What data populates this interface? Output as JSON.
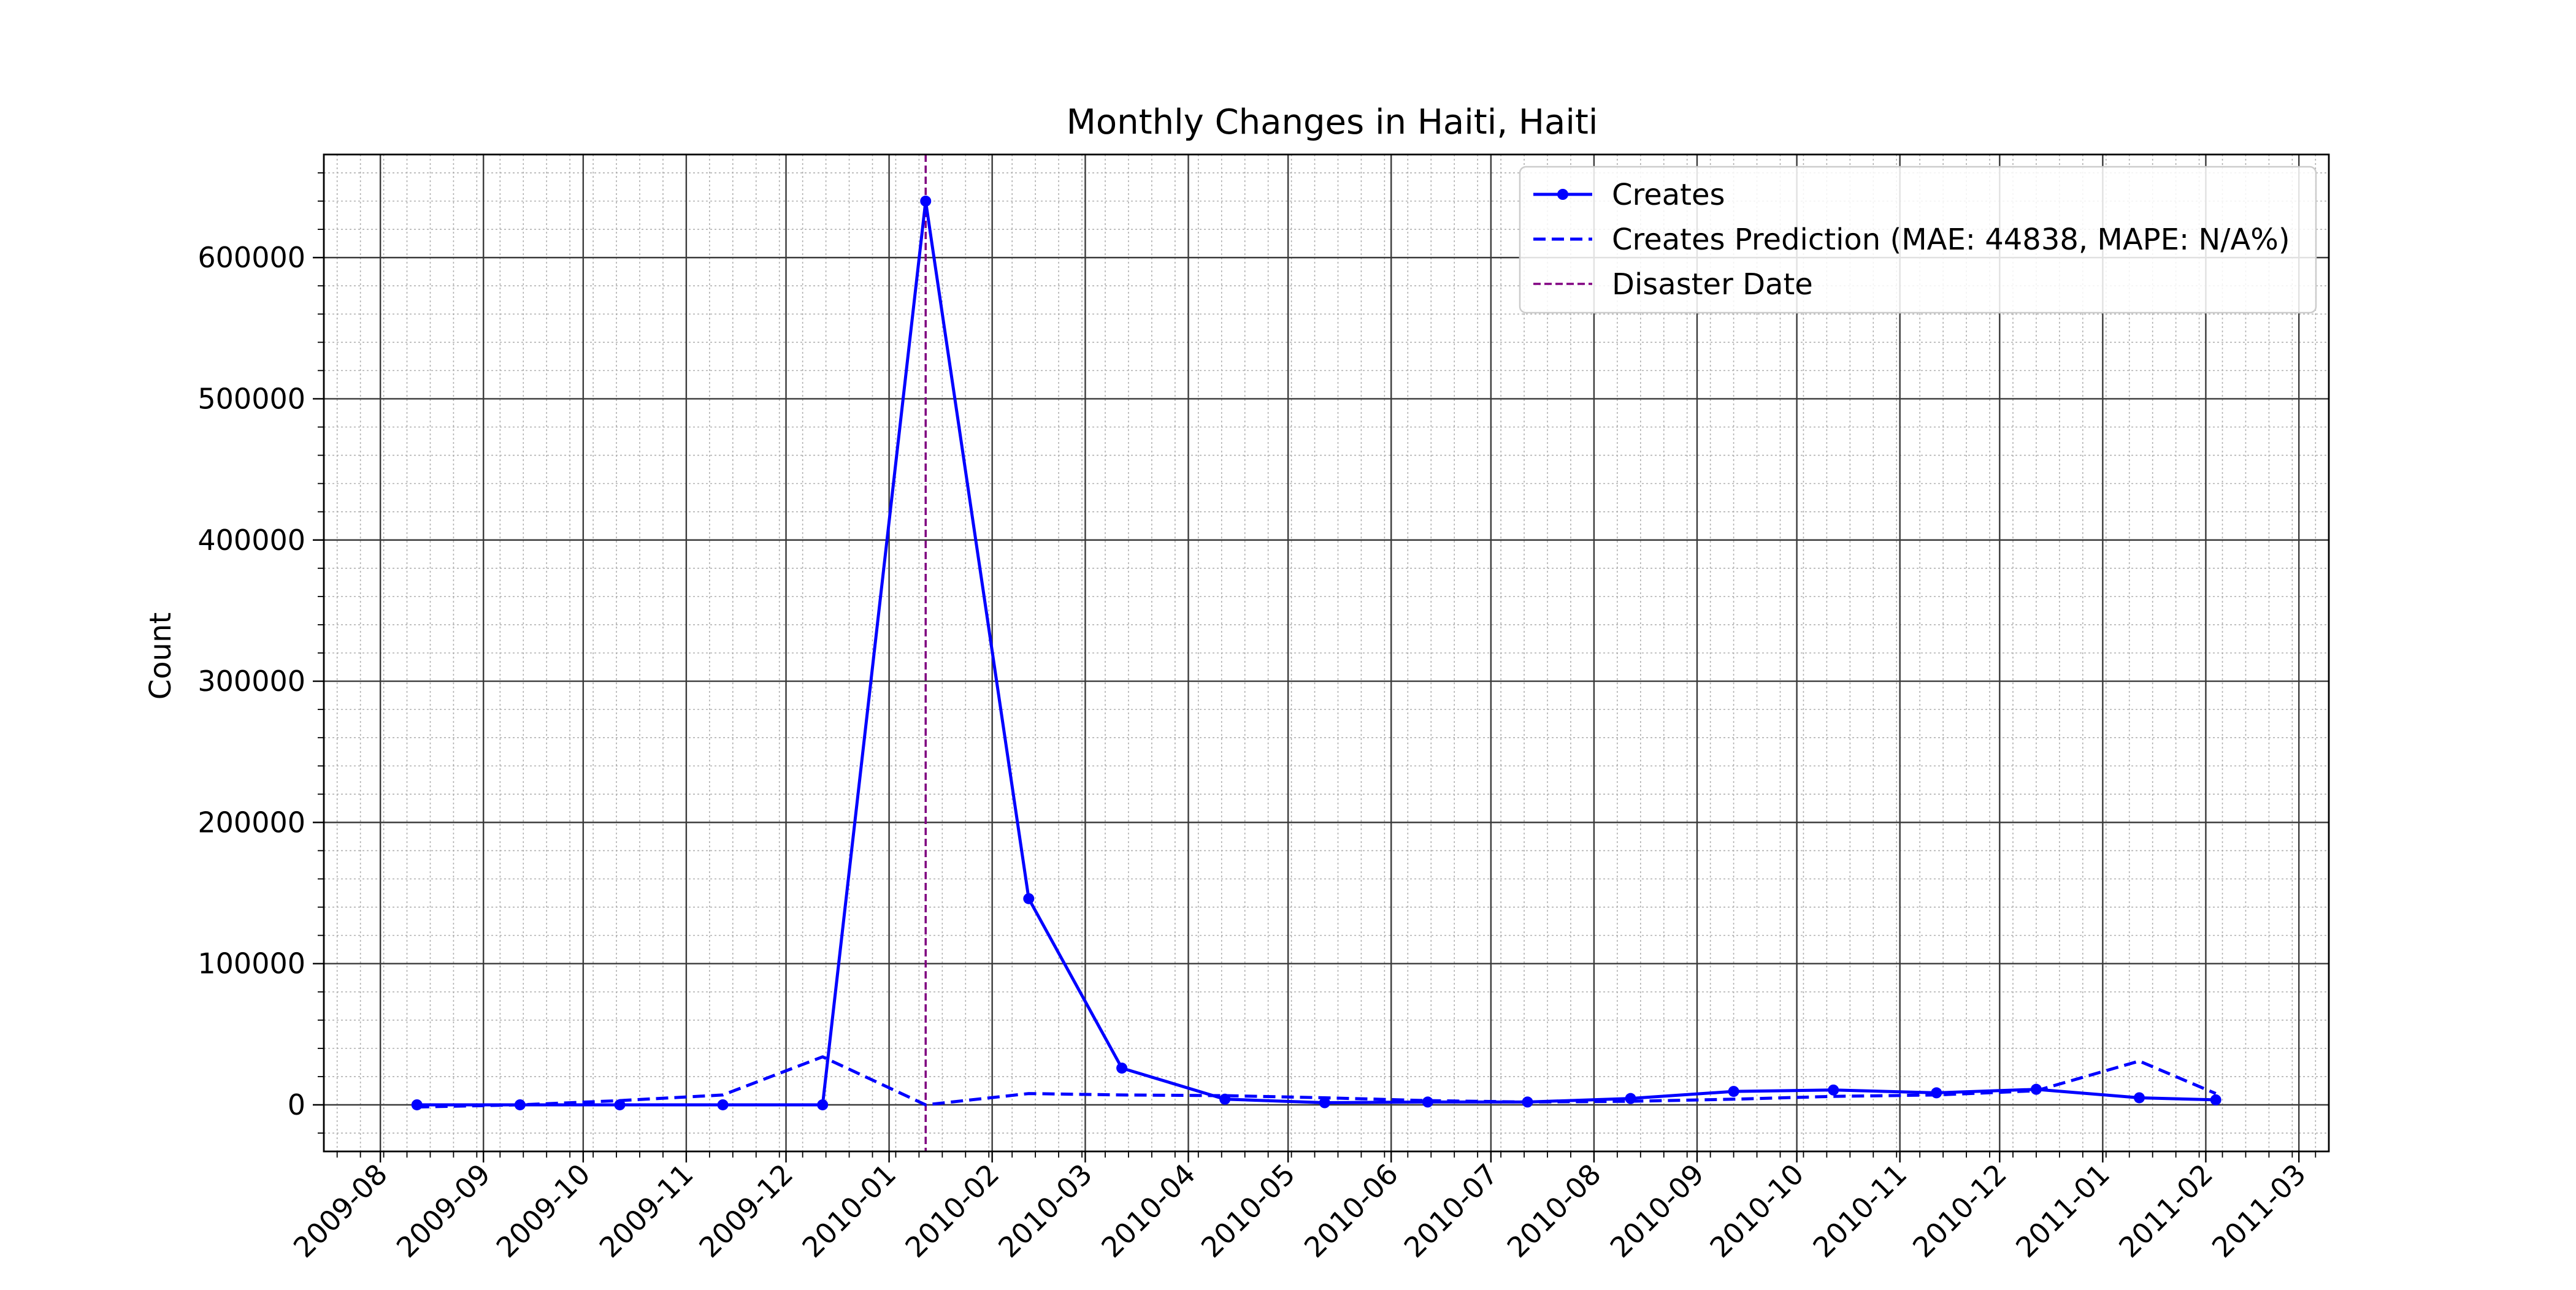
{
  "chart_data": {
    "type": "line",
    "title": "Monthly Changes in Haiti, Haiti",
    "xlabel": "",
    "ylabel": "Count",
    "x_ticks": [
      "2009-08",
      "2009-09",
      "2009-10",
      "2009-11",
      "2009-12",
      "2010-01",
      "2010-02",
      "2010-03",
      "2010-04",
      "2010-05",
      "2010-06",
      "2010-07",
      "2010-08",
      "2010-09",
      "2010-10",
      "2010-11",
      "2010-12",
      "2011-01",
      "2011-02",
      "2011-03"
    ],
    "y_ticks": [
      0,
      100000,
      200000,
      300000,
      400000,
      500000,
      600000
    ],
    "xlim": [
      "2009-07-15",
      "2011-03-10"
    ],
    "ylim": [
      -33000,
      673000
    ],
    "grid": true,
    "legend_position": "top-right",
    "series": [
      {
        "name": "Creates",
        "style": "solid-with-markers",
        "color": "#0000ff",
        "points": [
          [
            "2009-08-12",
            0
          ],
          [
            "2009-09-12",
            0
          ],
          [
            "2009-10-12",
            0
          ],
          [
            "2009-11-12",
            0
          ],
          [
            "2009-12-12",
            0
          ],
          [
            "2010-01-12",
            640000
          ],
          [
            "2010-02-12",
            146000
          ],
          [
            "2010-03-12",
            26000
          ],
          [
            "2010-04-12",
            4000
          ],
          [
            "2010-05-12",
            1500
          ],
          [
            "2010-06-12",
            2000
          ],
          [
            "2010-07-12",
            2000
          ],
          [
            "2010-08-12",
            4500
          ],
          [
            "2010-09-12",
            9500
          ],
          [
            "2010-10-12",
            10500
          ],
          [
            "2010-11-12",
            8500
          ],
          [
            "2010-12-12",
            11000
          ],
          [
            "2011-01-12",
            5000
          ],
          [
            "2011-02-04",
            3500
          ]
        ]
      },
      {
        "name": "Creates Prediction (MAE: 44838, MAPE: N/A%)",
        "style": "dashed",
        "color": "#0000ff",
        "points": [
          [
            "2009-08-12",
            -1500
          ],
          [
            "2009-09-12",
            0
          ],
          [
            "2009-10-12",
            3000
          ],
          [
            "2009-11-12",
            7000
          ],
          [
            "2009-12-12",
            34000
          ],
          [
            "2010-01-12",
            0
          ],
          [
            "2010-02-12",
            8000
          ],
          [
            "2010-03-12",
            7000
          ],
          [
            "2010-04-12",
            6500
          ],
          [
            "2010-05-12",
            5000
          ],
          [
            "2010-06-12",
            3000
          ],
          [
            "2010-07-12",
            2000
          ],
          [
            "2010-08-12",
            2500
          ],
          [
            "2010-09-12",
            4000
          ],
          [
            "2010-10-12",
            6000
          ],
          [
            "2010-11-12",
            7000
          ],
          [
            "2010-12-12",
            10000
          ],
          [
            "2011-01-12",
            31000
          ],
          [
            "2011-02-04",
            8000
          ]
        ]
      }
    ],
    "vlines": [
      {
        "name": "Disaster Date",
        "x": "2010-01-12",
        "style": "dashed",
        "color": "#800080"
      }
    ]
  }
}
